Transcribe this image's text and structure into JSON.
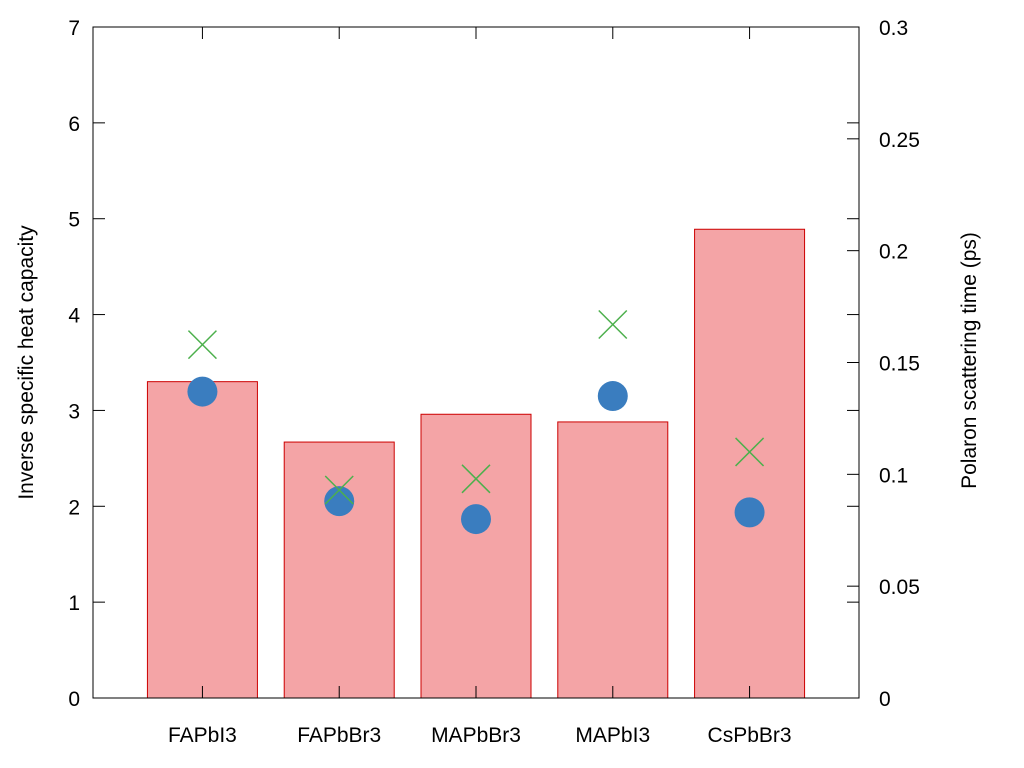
{
  "chart_data": {
    "type": "bar",
    "categories": [
      "FAPbI3",
      "FAPbBr3",
      "MAPbBr3",
      "MAPbI3",
      "CsPbBr3"
    ],
    "series": [
      {
        "kind": "bar",
        "axis": "left",
        "values": [
          3.3,
          2.67,
          2.96,
          2.88,
          4.89
        ],
        "fill": "#f4a4a6",
        "stroke": "#cc0000"
      },
      {
        "kind": "marker-circle",
        "axis": "right",
        "values": [
          0.137,
          0.088,
          0.08,
          0.135,
          0.083
        ],
        "color": "#3a7dbf"
      },
      {
        "kind": "marker-cross",
        "axis": "right",
        "values": [
          0.158,
          0.093,
          0.098,
          0.167,
          0.11
        ],
        "color": "#4cb04c"
      }
    ],
    "ylabel": "Inverse specific heat capacity",
    "y2label": "Polaron scattering time (ps)",
    "ylim": [
      0,
      7
    ],
    "y2lim": [
      0,
      0.3
    ],
    "yticks": [
      "0",
      "1",
      "2",
      "3",
      "4",
      "5",
      "6",
      "7"
    ],
    "y2ticks": [
      "0",
      "0.05",
      "0.1",
      "0.15",
      "0.2",
      "0.25",
      "0.3"
    ],
    "grid": false,
    "legend": "none"
  }
}
